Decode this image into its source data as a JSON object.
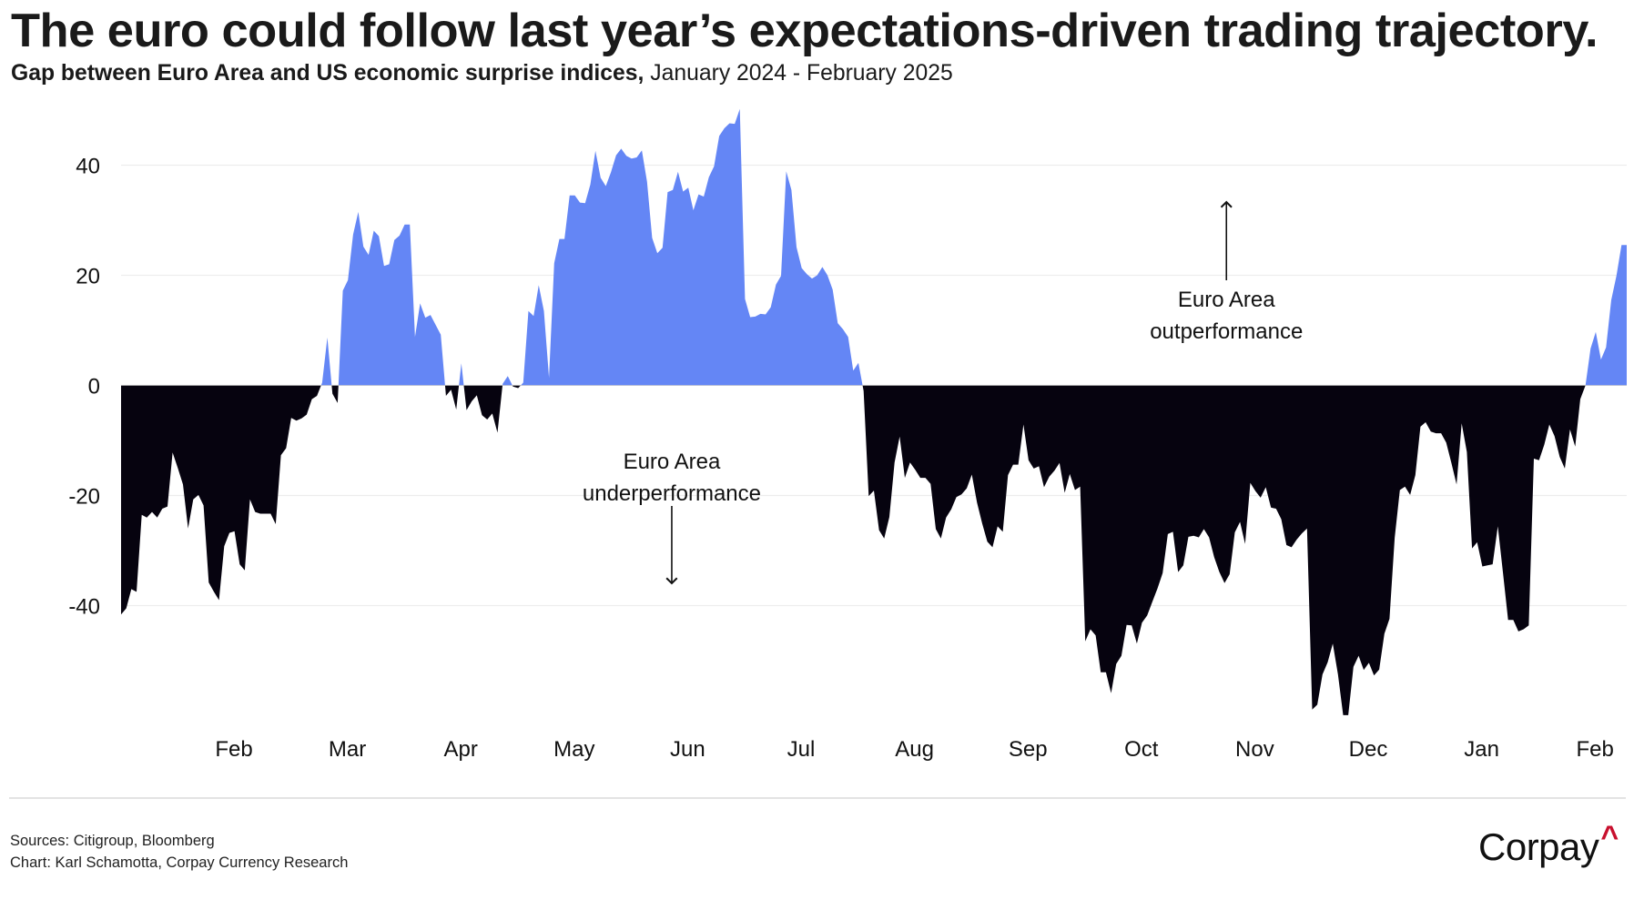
{
  "header": {
    "title": "The euro could follow last year’s expectations-driven trading trajectory.",
    "subtitle_strong": "Gap between Euro Area and US economic surprise indices,",
    "subtitle_range": " January 2024 - February 2025"
  },
  "footer": {
    "sources": "Sources: Citigroup, Bloomberg",
    "credit": "Chart: Karl Schamotta, Corpay Currency Research",
    "logo_text": "Corpay",
    "logo_mark": "^"
  },
  "colors": {
    "positive_fill": "#6486F5",
    "negative_fill": "#06030F",
    "gridline": "#EDEDED",
    "zero_line": "#BDBDBD",
    "logo_accent": "#C8102E"
  },
  "chart_data": {
    "type": "area",
    "title": "The euro could follow last year’s expectations-driven trading trajectory.",
    "subtitle": "Gap between Euro Area and US economic surprise indices, January 2024 - February 2025",
    "xlabel": "",
    "ylabel": "",
    "x_units": "months since start of January 2024",
    "x_range": [
      0,
      13.28
    ],
    "ylim": [
      -60,
      50
    ],
    "grid": true,
    "yticks": [
      40,
      20,
      0,
      -20,
      -40
    ],
    "ytick_labels": [
      "40",
      "20",
      "0",
      "-20",
      "-40"
    ],
    "xticks": [
      {
        "label": "Feb",
        "x": 1
      },
      {
        "label": "Mar",
        "x": 2
      },
      {
        "label": "Apr",
        "x": 3
      },
      {
        "label": "May",
        "x": 4
      },
      {
        "label": "Jun",
        "x": 5
      },
      {
        "label": "Jul",
        "x": 6
      },
      {
        "label": "Aug",
        "x": 7
      },
      {
        "label": "Sep",
        "x": 8
      },
      {
        "label": "Oct",
        "x": 9
      },
      {
        "label": "Nov",
        "x": 10
      },
      {
        "label": "Dec",
        "x": 11
      },
      {
        "label": "Jan",
        "x": 12
      },
      {
        "label": "Feb",
        "x": 13
      }
    ],
    "annotations": [
      {
        "lines": [
          "Euro Area",
          "outperformance"
        ],
        "arrow": "up",
        "x": 9.75,
        "y": 28
      },
      {
        "lines": [
          "Euro Area",
          "underperformance"
        ],
        "arrow": "down",
        "x": 4.86,
        "y": -20
      }
    ],
    "series": [
      {
        "name": "Euro Area minus US economic surprise index",
        "sampling": "evenly spaced over x_range",
        "values": [
          -41.6,
          -40.5,
          -37,
          -37.5,
          -23.5,
          -24,
          -23,
          -24,
          -22.4,
          -22,
          -12.2,
          -15,
          -18,
          -26,
          -20.7,
          -19.9,
          -21.8,
          -35.8,
          -37.5,
          -39,
          -29.2,
          -26.8,
          -26.5,
          -32.5,
          -33.6,
          -20.7,
          -23,
          -23.3,
          -23.3,
          -23.3,
          -25.2,
          -12.7,
          -11.4,
          -5.9,
          -6.4,
          -6,
          -5.3,
          -2.5,
          -1.9,
          0.5,
          8.7,
          -1.5,
          -3.2,
          17.2,
          19.1,
          27.4,
          31.5,
          25.2,
          23.7,
          28.1,
          27.1,
          21.7,
          22,
          26.4,
          27.2,
          29.2,
          29.2,
          8.8,
          14.9,
          12.3,
          12.8,
          11,
          9.2,
          -1.9,
          -0.8,
          -4.4,
          4,
          -4.5,
          -2.9,
          -1.8,
          -5.4,
          -6.2,
          -5.1,
          -8.6,
          0.3,
          1.7,
          -0.2,
          -0.5,
          0.5,
          13.5,
          12.6,
          18.2,
          13.5,
          1.4,
          22.2,
          26.6,
          26.6,
          34.5,
          34.5,
          33.2,
          33.1,
          36.5,
          42.6,
          37.7,
          36.2,
          38.7,
          41.8,
          43,
          41.7,
          41.2,
          41.4,
          42.7,
          37,
          26.8,
          24,
          25,
          35.1,
          35.5,
          38.8,
          35.2,
          35.9,
          31.8,
          34.7,
          34.3,
          37.8,
          39.8,
          45.3,
          46.7,
          47.6,
          47.5,
          50.2,
          15.7,
          12.4,
          12.5,
          13,
          12.9,
          14.2,
          18.3,
          19.9,
          38.9,
          35.5,
          25.1,
          21.3,
          20.2,
          19.4,
          20,
          21.5,
          20,
          17.4,
          11.3,
          10.2,
          8.8,
          2.7,
          4.1,
          -1,
          -20.1,
          -19.1,
          -26.3,
          -27.8,
          -23.9,
          -14,
          -9.3,
          -16.8,
          -14,
          -15.3,
          -16.8,
          -16.8,
          -17.9,
          -26.1,
          -27.8,
          -24,
          -22.5,
          -20.3,
          -19.8,
          -18.7,
          -16.2,
          -21.3,
          -25.1,
          -28.4,
          -29.4,
          -25.6,
          -26.6,
          -16.3,
          -14.4,
          -14.4,
          -7.1,
          -13.6,
          -15.1,
          -14.7,
          -18.5,
          -16.6,
          -15.5,
          -14.1,
          -19.5,
          -16.1,
          -19,
          -18.4,
          -46.5,
          -44.3,
          -45.4,
          -52.1,
          -52.1,
          -55.9,
          -50.6,
          -49.1,
          -43.5,
          -43.6,
          -46.9,
          -43.1,
          -41.8,
          -39.3,
          -36.9,
          -34.1,
          -27,
          -26.6,
          -33.9,
          -32.7,
          -27.5,
          -27.3,
          -27.6,
          -26.1,
          -27.6,
          -31.2,
          -33.9,
          -35.9,
          -34.3,
          -26.7,
          -24.8,
          -28.8,
          -17.7,
          -19.2,
          -20.4,
          -18.5,
          -22.2,
          -22.4,
          -24.3,
          -29,
          -29.4,
          -28,
          -26.9,
          -26,
          -58.9,
          -58,
          -52.5,
          -50.3,
          -46.9,
          -52.5,
          -59.9,
          -59.9,
          -51.1,
          -49.1,
          -51.7,
          -50.4,
          -52.7,
          -51.6,
          -45.1,
          -42.4,
          -27.7,
          -19,
          -18.4,
          -19.9,
          -16.3,
          -7.5,
          -6.7,
          -8.4,
          -8.7,
          -8.7,
          -10.4,
          -14.1,
          -18,
          -6.9,
          -12.1,
          -29.6,
          -28.5,
          -32.9,
          -32.7,
          -32.5,
          -25.6,
          -34.1,
          -42.6,
          -42.6,
          -44.7,
          -44.3,
          -43.6,
          -13.3,
          -13.6,
          -10.8,
          -7.1,
          -9.2,
          -13,
          -15.1,
          -8,
          -11.1,
          -2.5,
          0,
          6.7,
          9.7,
          4.7,
          6.9,
          15.5,
          19.9,
          25.5,
          25.5
        ]
      }
    ]
  }
}
